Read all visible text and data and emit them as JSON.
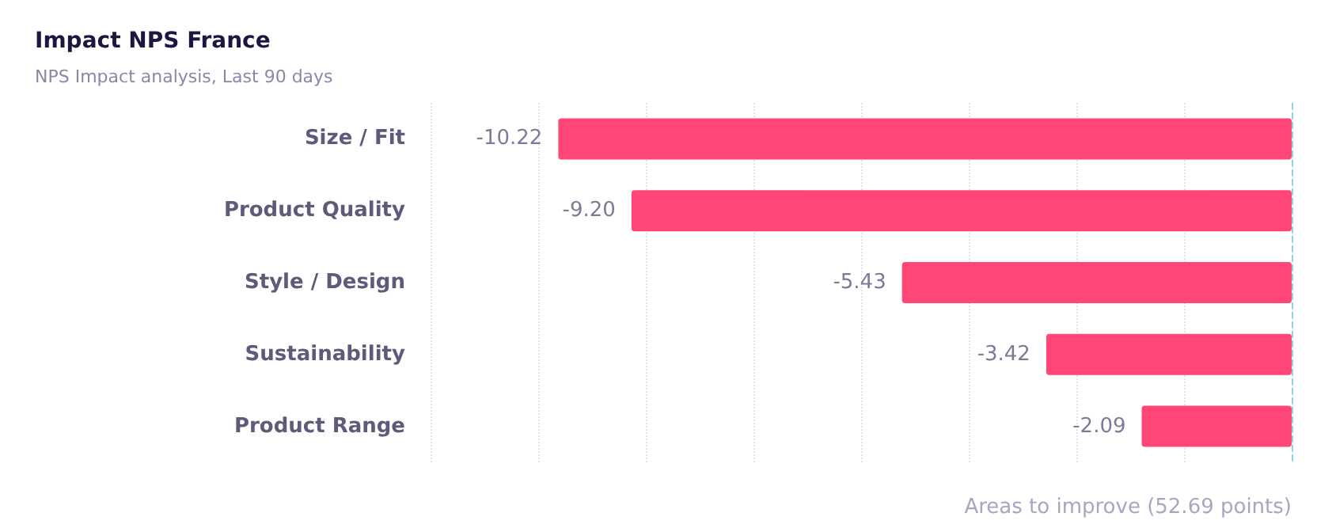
{
  "chart_data": {
    "type": "bar",
    "orientation": "horizontal",
    "title": "Impact NPS France",
    "subtitle": "NPS Impact analysis, Last 90 days",
    "xlabel": "Areas to improve (52.69 points)",
    "categories": [
      "Size / Fit",
      "Product Quality",
      "Style / Design",
      "Sustainability",
      "Product Range"
    ],
    "values": [
      -10.22,
      -9.2,
      -5.43,
      -3.42,
      -2.09
    ],
    "value_labels": [
      "-10.22",
      "-9.20",
      "-5.43",
      "-3.42",
      "-2.09"
    ],
    "color": "#ff4677",
    "xlim": [
      -12,
      0
    ],
    "xticks": [
      {
        "value": -12,
        "label": null
      },
      {
        "value": -10.5,
        "label": null
      },
      {
        "value": -9,
        "label": null
      },
      {
        "value": -7.5,
        "label": null
      },
      {
        "value": -6,
        "label": null
      },
      {
        "value": -4.5,
        "label": null
      },
      {
        "value": -3,
        "label": null
      },
      {
        "value": -1.5,
        "label": null
      },
      {
        "value": 0,
        "label": null
      }
    ],
    "grid": "x",
    "tick_labels": "y",
    "ref_lines": [
      {
        "axis": "x",
        "value": 0,
        "label": null,
        "color": "#8fd3e3",
        "line_style": "dashed"
      }
    ]
  }
}
